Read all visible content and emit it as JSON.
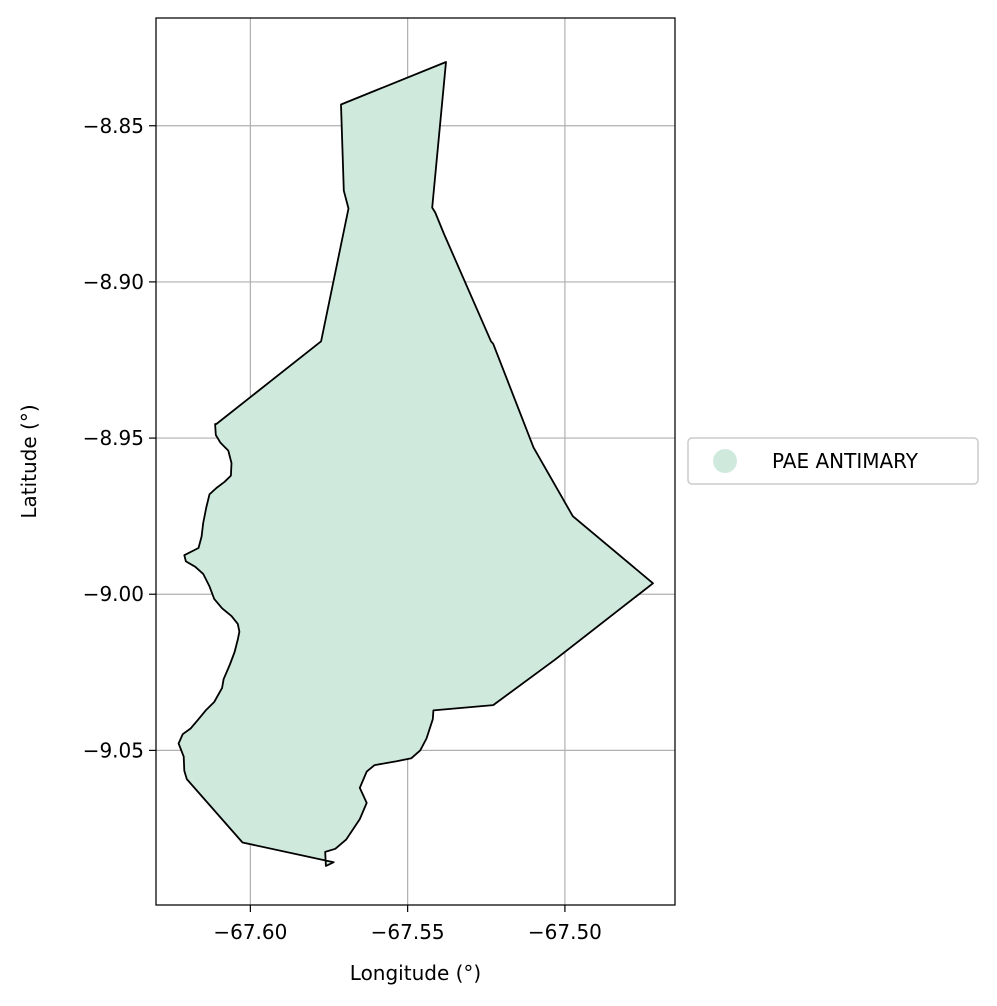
{
  "chart_data": {
    "type": "map",
    "xlabel": "Longitude (°)",
    "ylabel": "Latitude (°)",
    "xlim": [
      -67.63,
      -67.465
    ],
    "ylim": [
      -9.0995,
      -8.8155
    ],
    "xticks": [
      -67.6,
      -67.55,
      -67.5
    ],
    "xtick_labels": [
      "−67.60",
      "−67.55",
      "−67.50"
    ],
    "yticks": [
      -8.85,
      -8.9,
      -8.95,
      -9.0,
      -9.05
    ],
    "ytick_labels": [
      "−8.85",
      "−8.90",
      "−8.95",
      "−9.00",
      "−9.05"
    ],
    "grid": true,
    "legend": {
      "placement": "center-right-outside",
      "entries": [
        {
          "label": "PAE ANTIMARY",
          "color": "#cfeadd"
        }
      ]
    },
    "fill_color": "#cfeadd",
    "edge_color": "#000000",
    "polygon": [
      [
        -67.5712,
        -8.8432
      ],
      [
        -67.5378,
        -8.8296
      ],
      [
        -67.5422,
        -8.8762
      ],
      [
        -67.5412,
        -8.8778
      ],
      [
        -67.5385,
        -8.8845
      ],
      [
        -67.5235,
        -8.919
      ],
      [
        -67.5228,
        -8.9198
      ],
      [
        -67.51,
        -8.953
      ],
      [
        -67.4975,
        -8.975
      ],
      [
        -67.472,
        -8.9965
      ],
      [
        -67.5032,
        -9.021
      ],
      [
        -67.5228,
        -9.0355
      ],
      [
        -67.5418,
        -9.0372
      ],
      [
        -67.542,
        -9.04
      ],
      [
        -67.544,
        -9.0462
      ],
      [
        -67.546,
        -9.05
      ],
      [
        -67.5488,
        -9.0525
      ],
      [
        -67.5535,
        -9.0535
      ],
      [
        -67.5605,
        -9.0547
      ],
      [
        -67.563,
        -9.0568
      ],
      [
        -67.5652,
        -9.062
      ],
      [
        -67.563,
        -9.0668
      ],
      [
        -67.5652,
        -9.072
      ],
      [
        -67.5695,
        -9.0785
      ],
      [
        -67.573,
        -9.0815
      ],
      [
        -67.5762,
        -9.0825
      ],
      [
        -67.576,
        -9.087
      ],
      [
        -67.5735,
        -9.0858
      ],
      [
        -67.6025,
        -9.0795
      ],
      [
        -67.6202,
        -9.0592
      ],
      [
        -67.621,
        -9.0565
      ],
      [
        -67.6212,
        -9.052
      ],
      [
        -67.6228,
        -9.0478
      ],
      [
        -67.6215,
        -9.0448
      ],
      [
        -67.619,
        -9.043
      ],
      [
        -67.6165,
        -9.04
      ],
      [
        -67.6142,
        -9.0372
      ],
      [
        -67.6115,
        -9.0345
      ],
      [
        -67.609,
        -9.03
      ],
      [
        -67.6085,
        -9.0272
      ],
      [
        -67.6065,
        -9.0225
      ],
      [
        -67.605,
        -9.0185
      ],
      [
        -67.604,
        -9.0145
      ],
      [
        -67.6035,
        -9.012
      ],
      [
        -67.604,
        -9.0095
      ],
      [
        -67.606,
        -9.007
      ],
      [
        -67.609,
        -9.0045
      ],
      [
        -67.6115,
        -9.0015
      ],
      [
        -67.613,
        -8.9975
      ],
      [
        -67.615,
        -8.9935
      ],
      [
        -67.6175,
        -8.9912
      ],
      [
        -67.6205,
        -8.9895
      ],
      [
        -67.621,
        -8.9875
      ],
      [
        -67.6165,
        -8.9852
      ],
      [
        -67.6155,
        -8.9815
      ],
      [
        -67.615,
        -8.9772
      ],
      [
        -67.614,
        -8.9722
      ],
      [
        -67.613,
        -8.968
      ],
      [
        -67.6108,
        -8.966
      ],
      [
        -67.6082,
        -8.964
      ],
      [
        -67.6062,
        -8.962
      ],
      [
        -67.606,
        -8.958
      ],
      [
        -67.607,
        -8.954
      ],
      [
        -67.6095,
        -8.9515
      ],
      [
        -67.611,
        -8.949
      ],
      [
        -67.6112,
        -8.9455
      ],
      [
        -67.6108,
        -8.9455
      ],
      [
        -67.5775,
        -8.919
      ],
      [
        -67.5688,
        -8.8765
      ],
      [
        -67.5703,
        -8.8708
      ],
      [
        -67.5712,
        -8.8432
      ]
    ]
  }
}
